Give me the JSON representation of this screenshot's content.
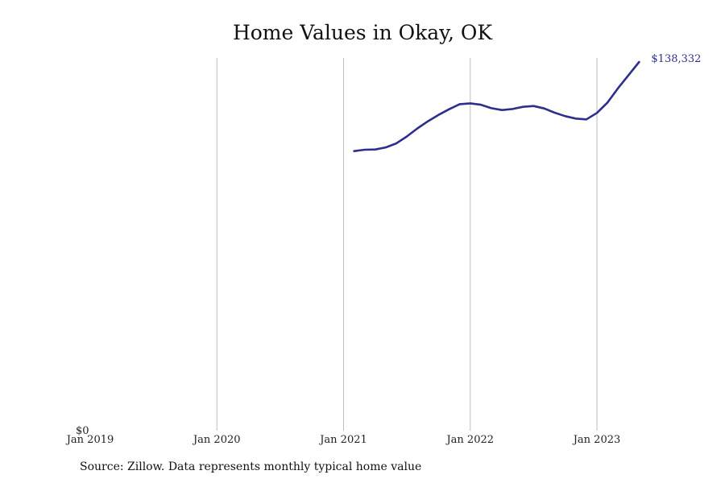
{
  "chart_data": {
    "type": "line",
    "title": "Home Values in Okay, OK",
    "xlabel": "",
    "ylabel": "",
    "x_ticks": [
      "Jan 2019",
      "Jan 2020",
      "Jan 2021",
      "Jan 2022",
      "Jan 2023"
    ],
    "y_tick_labels": [
      "$0"
    ],
    "ylim": [
      0,
      138332
    ],
    "xlim": [
      "2019-01",
      "2023-07"
    ],
    "grid": "vertical",
    "line_color": "#2e2e8f",
    "end_label": "$138,332",
    "series": [
      {
        "x": [
          "2021-02",
          "2021-03",
          "2021-04",
          "2021-05",
          "2021-06",
          "2021-07",
          "2021-08",
          "2021-09",
          "2021-10",
          "2021-11",
          "2021-12",
          "2022-01",
          "2022-02",
          "2022-03",
          "2022-04",
          "2022-05",
          "2022-06",
          "2022-07",
          "2022-08",
          "2022-09",
          "2022-10",
          "2022-11",
          "2022-12",
          "2023-01",
          "2023-02",
          "2023-03",
          "2023-04",
          "2023-05"
        ],
        "values": [
          104900,
          105400,
          105500,
          106300,
          107800,
          110400,
          113400,
          116100,
          118500,
          120600,
          122500,
          122800,
          122300,
          121000,
          120300,
          120700,
          121500,
          121800,
          120900,
          119300,
          118000,
          117100,
          116800,
          119200,
          123100,
          128500,
          133400,
          138332
        ]
      }
    ]
  },
  "source": "Source: Zillow. Data represents monthly typical home value"
}
